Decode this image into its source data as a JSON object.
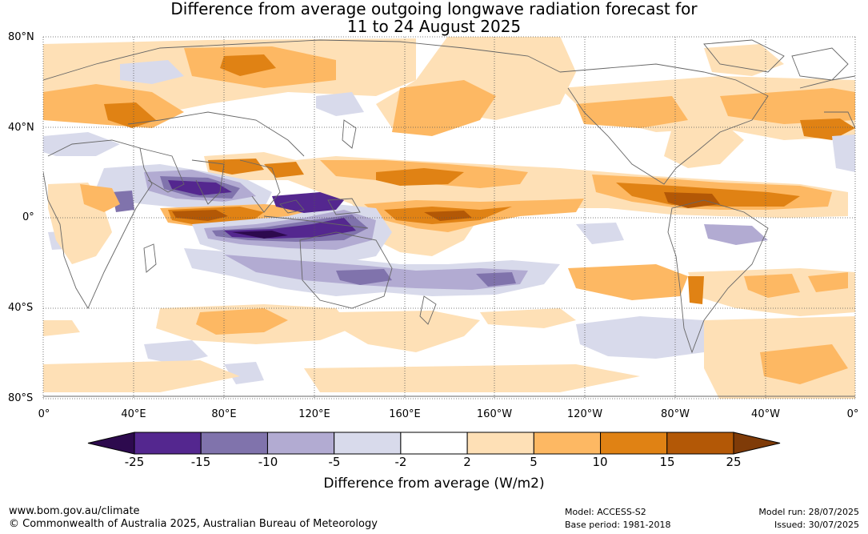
{
  "title_line1": "Difference from average outgoing longwave radiation forecast for",
  "title_line2": "11 to 24 August 2025",
  "map": {
    "lat_labels": [
      "80°N",
      "40°N",
      "0°",
      "40°S",
      "80°S"
    ],
    "lon_labels": [
      "0°",
      "40°E",
      "80°E",
      "120°E",
      "160°E",
      "160°W",
      "120°W",
      "80°W",
      "40°W",
      "0°"
    ],
    "lat_range": [
      -80,
      80
    ],
    "lon_range": [
      0,
      360
    ]
  },
  "colorbar": {
    "ticks": [
      "-25",
      "-15",
      "-10",
      "-5",
      "-2",
      "2",
      "5",
      "10",
      "15",
      "25"
    ],
    "colors": [
      "#2d0a4e",
      "#54278f",
      "#8073ac",
      "#b2abd2",
      "#d8daeb",
      "#ffffff",
      "#fee0b6",
      "#fdb863",
      "#e08214",
      "#b35806",
      "#7f3b08"
    ],
    "title": "Difference from average (W/m2)"
  },
  "footer": {
    "url": "www.bom.gov.au/climate",
    "copyright": "© Commonwealth of Australia 2025, Australian Bureau of Meteorology",
    "model": "Model: ACCESS-S2",
    "base_period": "Base period: 1981-2018",
    "model_run": "Model run: 28/07/2025",
    "issued": "Issued: 30/07/2025"
  }
}
